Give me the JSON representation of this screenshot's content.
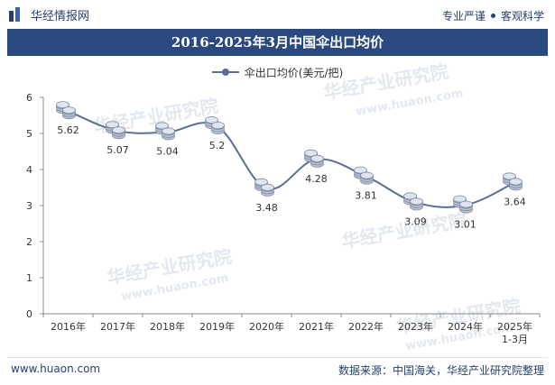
{
  "header": {
    "brand": "华经情报网",
    "tagline_left": "专业严谨",
    "tagline_right": "客观科学"
  },
  "watermark": {
    "text": "华经产业研究院",
    "url": "www.huaon.com"
  },
  "footer": {
    "url": "www.huaon.com",
    "source": "数据来源：中国海关，华经产业研究院整理"
  },
  "chart_data": {
    "type": "line",
    "title": "2016-2025年3月中国伞出口均价",
    "categories": [
      "2016年",
      "2017年",
      "2018年",
      "2019年",
      "2020年",
      "2021年",
      "2022年",
      "2023年",
      "2024年",
      "2025年1-3月"
    ],
    "category_labels": [
      [
        "2016年"
      ],
      [
        "2017年"
      ],
      [
        "2018年"
      ],
      [
        "2019年"
      ],
      [
        "2020年"
      ],
      [
        "2021年"
      ],
      [
        "2022年"
      ],
      [
        "2023年"
      ],
      [
        "2024年"
      ],
      [
        "2025年",
        "1-3月"
      ]
    ],
    "series": [
      {
        "name": "伞出口均价(美元/把)",
        "values": [
          5.62,
          5.07,
          5.04,
          5.2,
          3.48,
          4.28,
          3.81,
          3.09,
          3.01,
          3.64
        ],
        "color": "#5b6f93"
      }
    ],
    "ylim": [
      0,
      6
    ],
    "yticks": [
      0,
      1,
      2,
      3,
      4,
      5,
      6
    ],
    "xlabel": "",
    "ylabel": "",
    "legend_position": "top-center",
    "grid": false,
    "smooth": true
  }
}
